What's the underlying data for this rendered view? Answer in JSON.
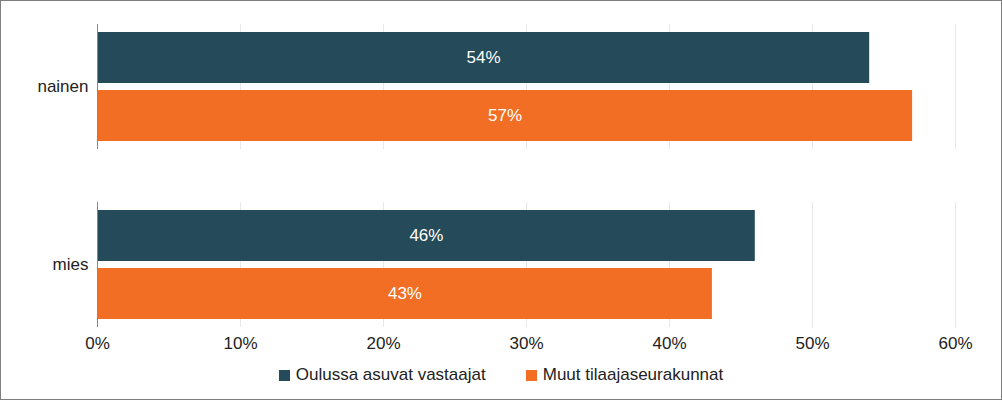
{
  "chart_data": {
    "type": "bar",
    "orientation": "horizontal",
    "categories": [
      "nainen",
      "mies"
    ],
    "series": [
      {
        "name": "Oulussa asuvat vastaajat",
        "color": "#254B5A",
        "values": [
          54,
          46
        ],
        "value_labels": [
          "54%",
          "46%"
        ]
      },
      {
        "name": "Muut tilaajaseurakunnat",
        "color": "#F26E24",
        "values": [
          57,
          43
        ],
        "value_labels": [
          "57%",
          "43%"
        ]
      }
    ],
    "xlim": [
      0,
      60
    ],
    "xticks": [
      {
        "value": 0,
        "label": "0%"
      },
      {
        "value": 10,
        "label": "10%"
      },
      {
        "value": 20,
        "label": "20%"
      },
      {
        "value": 30,
        "label": "30%"
      },
      {
        "value": 40,
        "label": "40%"
      },
      {
        "value": 50,
        "label": "50%"
      },
      {
        "value": 60,
        "label": "60%"
      }
    ],
    "grid": true,
    "data_labels": true,
    "legend": "bottom"
  }
}
